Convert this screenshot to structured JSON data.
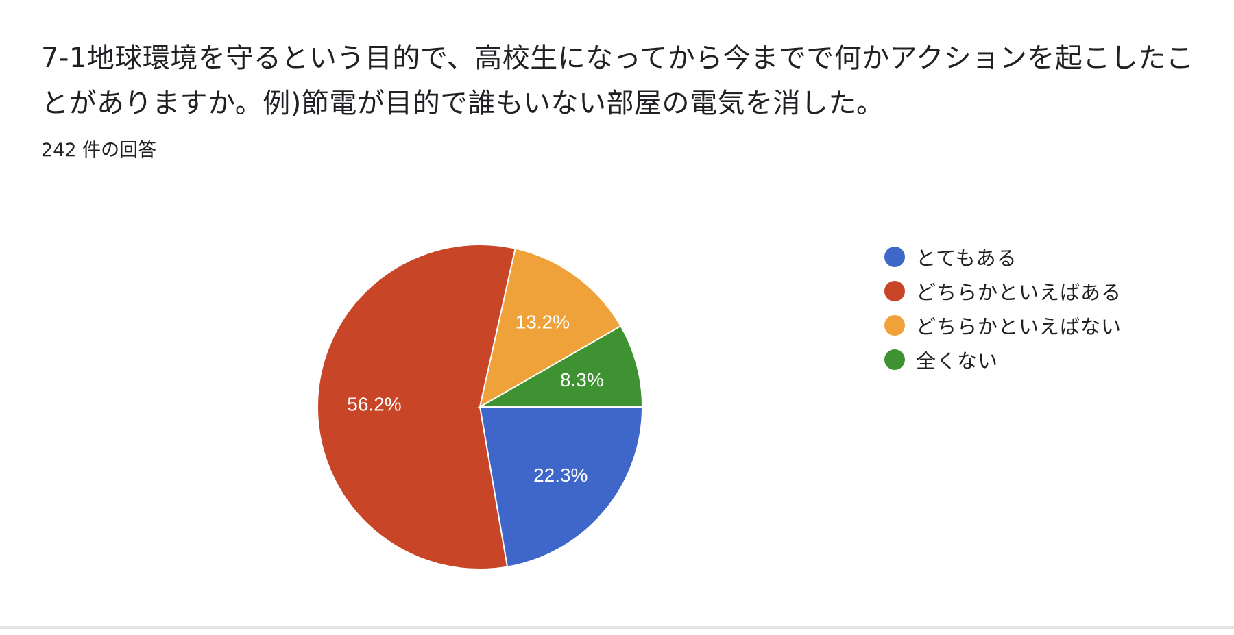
{
  "question": {
    "title": "7-1地球環境を守るという目的で、高校生になってから今までで何かアクションを起こしたことがありますか。例)節電が目的で誰もいない部屋の電気を消した。",
    "response_count": "242 件の回答"
  },
  "colors": {
    "blue": "#3F67C9",
    "red": "#C84627",
    "orange": "#EFA23A",
    "green": "#3E9232"
  },
  "chart_data": {
    "type": "pie",
    "title": "",
    "total_responses": 242,
    "slices": [
      {
        "label": "とてもある",
        "value": 22.3,
        "display": "22.3%",
        "color": "#3F67C9"
      },
      {
        "label": "どちらかといえばある",
        "value": 56.2,
        "display": "56.2%",
        "color": "#C84627"
      },
      {
        "label": "どちらかといえばない",
        "value": 13.2,
        "display": "13.2%",
        "color": "#EFA23A"
      },
      {
        "label": "全くない",
        "value": 8.3,
        "display": "8.3%",
        "color": "#3E9232"
      }
    ],
    "legend_position": "right"
  }
}
